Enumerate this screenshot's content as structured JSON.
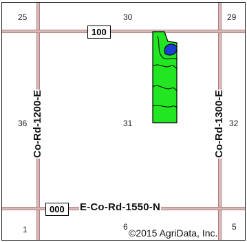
{
  "section_numbers": {
    "s25": "25",
    "s30": "30",
    "s29": "29",
    "s36": "36",
    "s31": "31",
    "s32": "32",
    "s1": "1",
    "s6": "6",
    "s5": "5"
  },
  "roads": {
    "top_shield": "100",
    "bottom_shield": "000",
    "bottom_label": "E-Co-Rd-1550-N",
    "left_label": "Co-Rd-1200-E",
    "right_label": "Co-Rd-1300-E"
  },
  "copyright": "©2015 AgriData, Inc.",
  "colors": {
    "field_fill": "#22e622",
    "water_fill": "#1a3fd0",
    "road_fill": "#d8b8b8",
    "road_edge": "#b08080"
  }
}
